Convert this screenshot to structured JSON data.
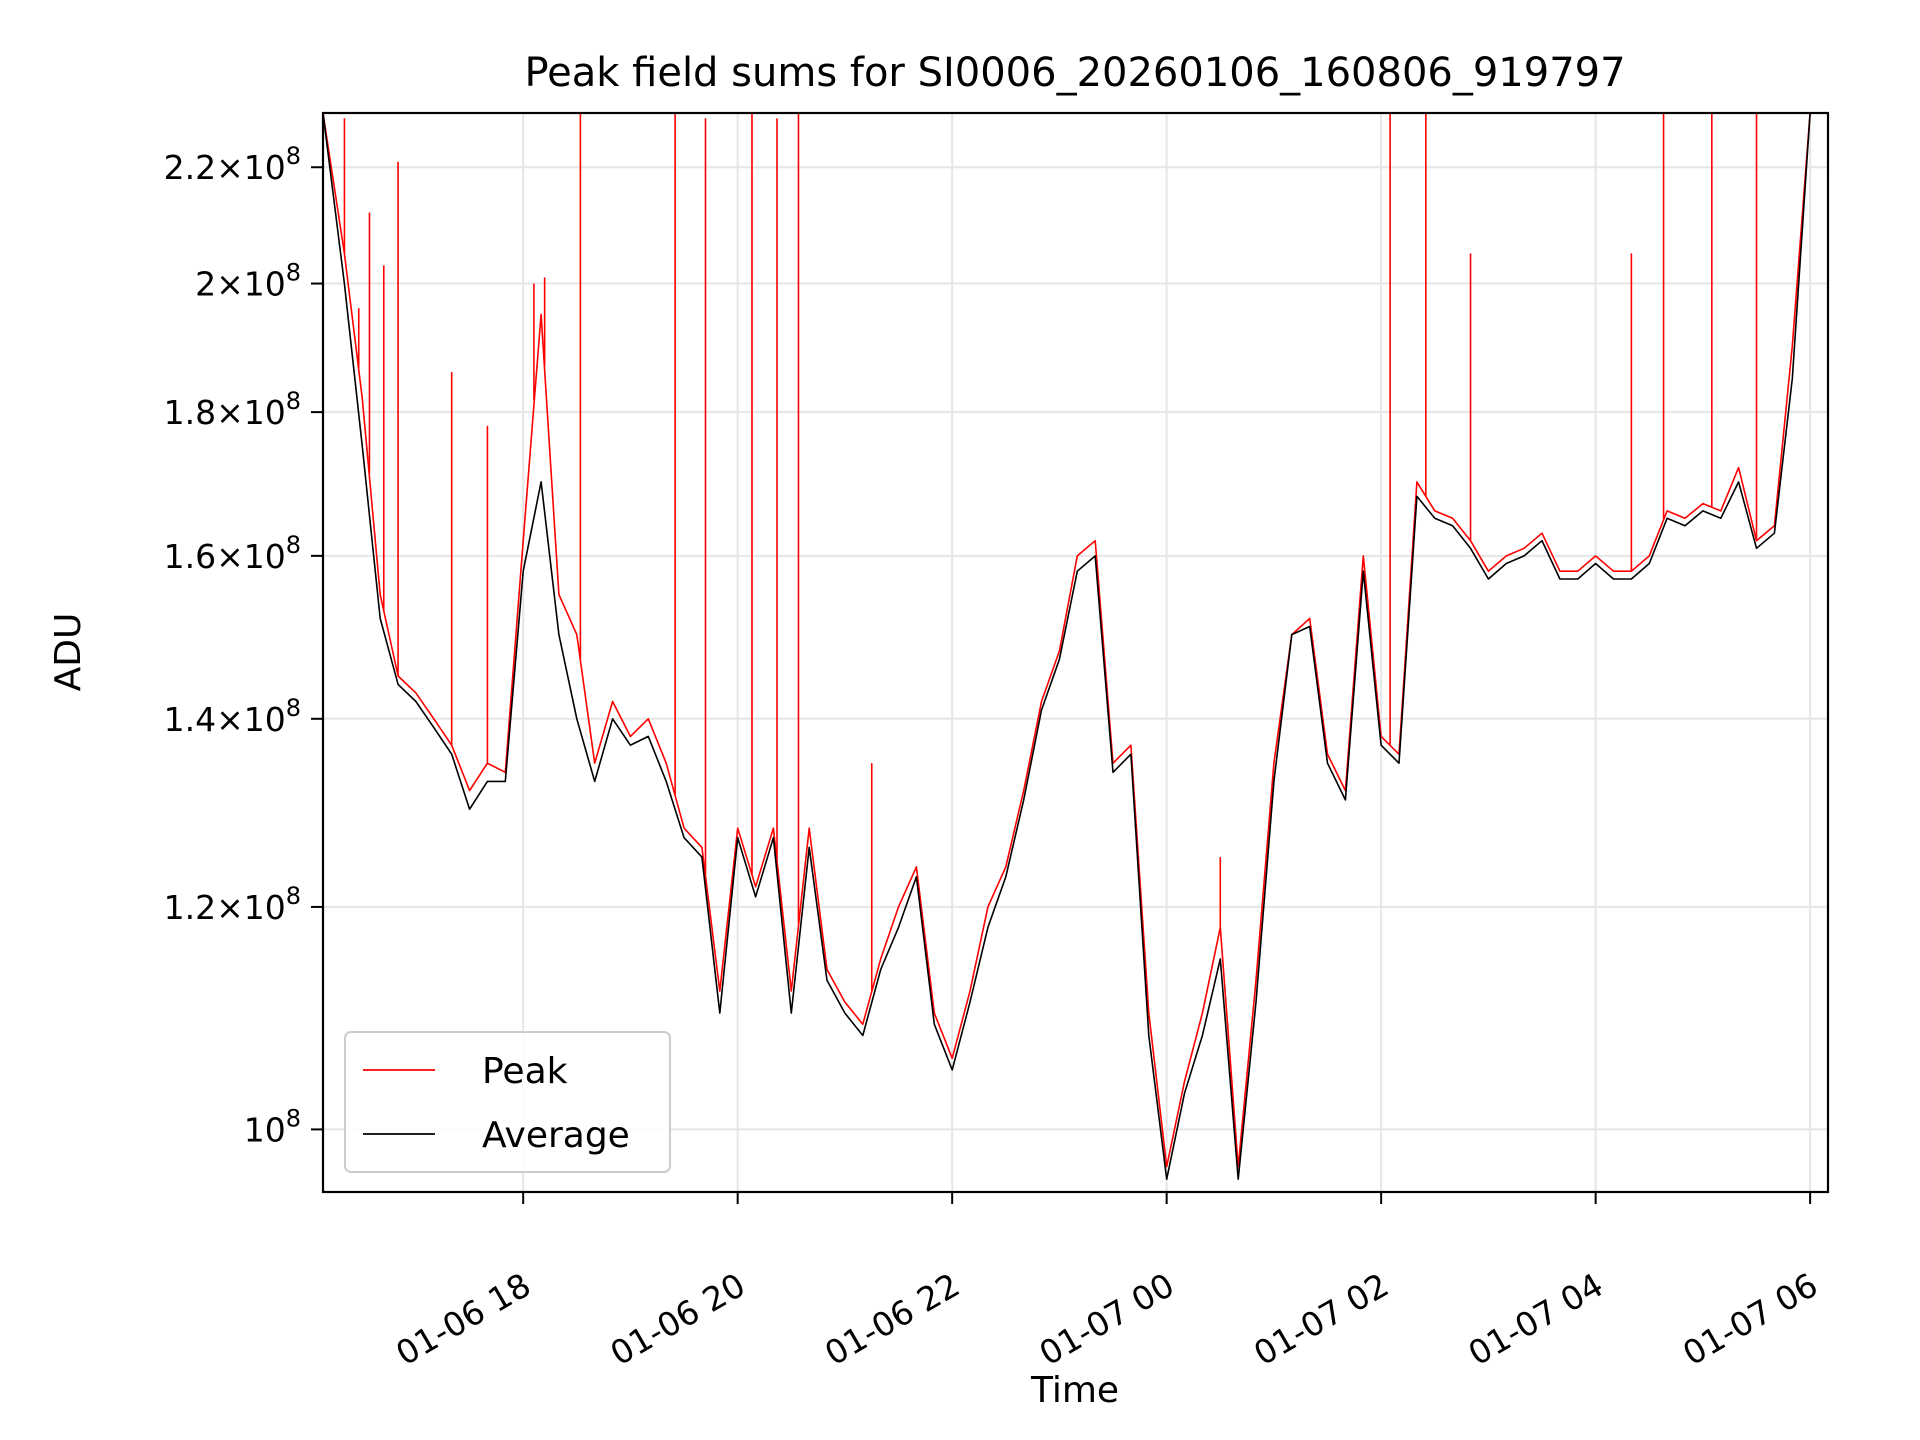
{
  "chart_data": {
    "type": "line",
    "title": "Peak field sums for SI0006_20260106_160806_919797",
    "xlabel": "Time",
    "ylabel": "ADU",
    "y_scale": "log",
    "ylim": [
      95000000,
      230000000
    ],
    "xlim": [
      "2026-01-06 16:08",
      "2026-01-07 06:10"
    ],
    "grid": true,
    "legend_position": "lower-left",
    "x_ticks": [
      {
        "time": "2026-01-06 18:00",
        "label": "01-06 18"
      },
      {
        "time": "2026-01-06 20:00",
        "label": "01-06 20"
      },
      {
        "time": "2026-01-06 22:00",
        "label": "01-06 22"
      },
      {
        "time": "2026-01-07 00:00",
        "label": "01-07 00"
      },
      {
        "time": "2026-01-07 02:00",
        "label": "01-07 02"
      },
      {
        "time": "2026-01-07 04:00",
        "label": "01-07 04"
      },
      {
        "time": "2026-01-07 06:00",
        "label": "01-07 06"
      }
    ],
    "y_ticks": [
      {
        "value": 100000000,
        "mantissa": "",
        "exponent": "8"
      },
      {
        "value": 120000000,
        "mantissa": "1.2",
        "exponent": "8"
      },
      {
        "value": 140000000,
        "mantissa": "1.4",
        "exponent": "8"
      },
      {
        "value": 160000000,
        "mantissa": "1.6",
        "exponent": "8"
      },
      {
        "value": 180000000,
        "mantissa": "1.8",
        "exponent": "8"
      },
      {
        "value": 200000000,
        "mantissa": "2",
        "exponent": "8"
      },
      {
        "value": 220000000,
        "mantissa": "2.2",
        "exponent": "8"
      }
    ],
    "series": [
      {
        "name": "Peak",
        "color": "#ff0000",
        "x": [
          "2026-01-06 16:08",
          "2026-01-06 16:20",
          "2026-01-06 16:30",
          "2026-01-06 16:40",
          "2026-01-06 16:50",
          "2026-01-06 17:00",
          "2026-01-06 17:10",
          "2026-01-06 17:20",
          "2026-01-06 17:30",
          "2026-01-06 17:40",
          "2026-01-06 17:50",
          "2026-01-06 18:00",
          "2026-01-06 18:10",
          "2026-01-06 18:20",
          "2026-01-06 18:30",
          "2026-01-06 18:40",
          "2026-01-06 18:50",
          "2026-01-06 19:00",
          "2026-01-06 19:10",
          "2026-01-06 19:20",
          "2026-01-06 19:30",
          "2026-01-06 19:40",
          "2026-01-06 19:50",
          "2026-01-06 20:00",
          "2026-01-06 20:10",
          "2026-01-06 20:20",
          "2026-01-06 20:30",
          "2026-01-06 20:40",
          "2026-01-06 20:50",
          "2026-01-06 21:00",
          "2026-01-06 21:10",
          "2026-01-06 21:20",
          "2026-01-06 21:30",
          "2026-01-06 21:40",
          "2026-01-06 21:50",
          "2026-01-06 22:00",
          "2026-01-06 22:10",
          "2026-01-06 22:20",
          "2026-01-06 22:30",
          "2026-01-06 22:40",
          "2026-01-06 22:50",
          "2026-01-06 23:00",
          "2026-01-06 23:10",
          "2026-01-06 23:20",
          "2026-01-06 23:30",
          "2026-01-06 23:40",
          "2026-01-06 23:50",
          "2026-01-07 00:00",
          "2026-01-07 00:10",
          "2026-01-07 00:20",
          "2026-01-07 00:30",
          "2026-01-07 00:40",
          "2026-01-07 00:50",
          "2026-01-07 01:00",
          "2026-01-07 01:10",
          "2026-01-07 01:20",
          "2026-01-07 01:30",
          "2026-01-07 01:40",
          "2026-01-07 01:50",
          "2026-01-07 02:00",
          "2026-01-07 02:10",
          "2026-01-07 02:20",
          "2026-01-07 02:30",
          "2026-01-07 02:40",
          "2026-01-07 02:50",
          "2026-01-07 03:00",
          "2026-01-07 03:10",
          "2026-01-07 03:20",
          "2026-01-07 03:30",
          "2026-01-07 03:40",
          "2026-01-07 03:50",
          "2026-01-07 04:00",
          "2026-01-07 04:10",
          "2026-01-07 04:20",
          "2026-01-07 04:30",
          "2026-01-07 04:40",
          "2026-01-07 04:50",
          "2026-01-07 05:00",
          "2026-01-07 05:10",
          "2026-01-07 05:20",
          "2026-01-07 05:30",
          "2026-01-07 05:40",
          "2026-01-07 05:50",
          "2026-01-07 06:00",
          "2026-01-07 06:10"
        ],
        "y": [
          230000000,
          205000000,
          182000000,
          155000000,
          145000000,
          143000000,
          140000000,
          137000000,
          132000000,
          135000000,
          134000000,
          162000000,
          195000000,
          155000000,
          150000000,
          135000000,
          142000000,
          138000000,
          140000000,
          135000000,
          128000000,
          126000000,
          112000000,
          128000000,
          122000000,
          128000000,
          112000000,
          128000000,
          114000000,
          111000000,
          109000000,
          115000000,
          120000000,
          124000000,
          110000000,
          106000000,
          112000000,
          120000000,
          124000000,
          132000000,
          142000000,
          148000000,
          160000000,
          162000000,
          135000000,
          137000000,
          110000000,
          97000000,
          104000000,
          110000000,
          118000000,
          97000000,
          113000000,
          135000000,
          150000000,
          152000000,
          136000000,
          132000000,
          160000000,
          138000000,
          136000000,
          170000000,
          166000000,
          165000000,
          162000000,
          158000000,
          160000000,
          161000000,
          163000000,
          158000000,
          158000000,
          160000000,
          158000000,
          158000000,
          160000000,
          166000000,
          165000000,
          167000000,
          166000000,
          172000000,
          162000000,
          164000000,
          190000000,
          230000000,
          230000000
        ],
        "spikes": [
          {
            "x": "2026-01-06 16:20",
            "y": 229000000
          },
          {
            "x": "2026-01-06 16:28",
            "y": 196000000
          },
          {
            "x": "2026-01-06 16:34",
            "y": 212000000
          },
          {
            "x": "2026-01-06 16:42",
            "y": 203000000
          },
          {
            "x": "2026-01-06 16:50",
            "y": 221000000
          },
          {
            "x": "2026-01-06 17:20",
            "y": 186000000
          },
          {
            "x": "2026-01-06 17:40",
            "y": 178000000
          },
          {
            "x": "2026-01-06 18:06",
            "y": 200000000
          },
          {
            "x": "2026-01-06 18:12",
            "y": 201000000
          },
          {
            "x": "2026-01-06 18:32",
            "y": 230000000
          },
          {
            "x": "2026-01-06 19:25",
            "y": 230000000
          },
          {
            "x": "2026-01-06 19:42",
            "y": 229000000
          },
          {
            "x": "2026-01-06 20:08",
            "y": 230000000
          },
          {
            "x": "2026-01-06 20:22",
            "y": 229000000
          },
          {
            "x": "2026-01-06 20:34",
            "y": 230000000
          },
          {
            "x": "2026-01-06 21:15",
            "y": 135000000
          },
          {
            "x": "2026-01-07 00:30",
            "y": 125000000
          },
          {
            "x": "2026-01-07 02:05",
            "y": 230000000
          },
          {
            "x": "2026-01-07 02:25",
            "y": 230000000
          },
          {
            "x": "2026-01-07 02:50",
            "y": 205000000
          },
          {
            "x": "2026-01-07 04:20",
            "y": 205000000
          },
          {
            "x": "2026-01-07 04:38",
            "y": 230000000
          },
          {
            "x": "2026-01-07 05:05",
            "y": 230000000
          },
          {
            "x": "2026-01-07 05:30",
            "y": 230000000
          }
        ]
      },
      {
        "name": "Average",
        "color": "#000000",
        "x": [
          "2026-01-06 16:08",
          "2026-01-06 16:20",
          "2026-01-06 16:30",
          "2026-01-06 16:40",
          "2026-01-06 16:50",
          "2026-01-06 17:00",
          "2026-01-06 17:10",
          "2026-01-06 17:20",
          "2026-01-06 17:30",
          "2026-01-06 17:40",
          "2026-01-06 17:50",
          "2026-01-06 18:00",
          "2026-01-06 18:10",
          "2026-01-06 18:20",
          "2026-01-06 18:30",
          "2026-01-06 18:40",
          "2026-01-06 18:50",
          "2026-01-06 19:00",
          "2026-01-06 19:10",
          "2026-01-06 19:20",
          "2026-01-06 19:30",
          "2026-01-06 19:40",
          "2026-01-06 19:50",
          "2026-01-06 20:00",
          "2026-01-06 20:10",
          "2026-01-06 20:20",
          "2026-01-06 20:30",
          "2026-01-06 20:40",
          "2026-01-06 20:50",
          "2026-01-06 21:00",
          "2026-01-06 21:10",
          "2026-01-06 21:20",
          "2026-01-06 21:30",
          "2026-01-06 21:40",
          "2026-01-06 21:50",
          "2026-01-06 22:00",
          "2026-01-06 22:10",
          "2026-01-06 22:20",
          "2026-01-06 22:30",
          "2026-01-06 22:40",
          "2026-01-06 22:50",
          "2026-01-06 23:00",
          "2026-01-06 23:10",
          "2026-01-06 23:20",
          "2026-01-06 23:30",
          "2026-01-06 23:40",
          "2026-01-06 23:50",
          "2026-01-07 00:00",
          "2026-01-07 00:10",
          "2026-01-07 00:20",
          "2026-01-07 00:30",
          "2026-01-07 00:40",
          "2026-01-07 00:50",
          "2026-01-07 01:00",
          "2026-01-07 01:10",
          "2026-01-07 01:20",
          "2026-01-07 01:30",
          "2026-01-07 01:40",
          "2026-01-07 01:50",
          "2026-01-07 02:00",
          "2026-01-07 02:10",
          "2026-01-07 02:20",
          "2026-01-07 02:30",
          "2026-01-07 02:40",
          "2026-01-07 02:50",
          "2026-01-07 03:00",
          "2026-01-07 03:10",
          "2026-01-07 03:20",
          "2026-01-07 03:30",
          "2026-01-07 03:40",
          "2026-01-07 03:50",
          "2026-01-07 04:00",
          "2026-01-07 04:10",
          "2026-01-07 04:20",
          "2026-01-07 04:30",
          "2026-01-07 04:40",
          "2026-01-07 04:50",
          "2026-01-07 05:00",
          "2026-01-07 05:10",
          "2026-01-07 05:20",
          "2026-01-07 05:30",
          "2026-01-07 05:40",
          "2026-01-07 05:50",
          "2026-01-07 06:00",
          "2026-01-07 06:10"
        ],
        "y": [
          230000000,
          200000000,
          175000000,
          152000000,
          144000000,
          142000000,
          139000000,
          136000000,
          130000000,
          133000000,
          133000000,
          158000000,
          170000000,
          150000000,
          140000000,
          133000000,
          140000000,
          137000000,
          138000000,
          133000000,
          127000000,
          125000000,
          110000000,
          127000000,
          121000000,
          127000000,
          110000000,
          126000000,
          113000000,
          110000000,
          108000000,
          114000000,
          118000000,
          123000000,
          109000000,
          105000000,
          111000000,
          118000000,
          123000000,
          131000000,
          141000000,
          147000000,
          158000000,
          160000000,
          134000000,
          136000000,
          108000000,
          96000000,
          103000000,
          108000000,
          115000000,
          96000000,
          111000000,
          133000000,
          150000000,
          151000000,
          135000000,
          131000000,
          158000000,
          137000000,
          135000000,
          168000000,
          165000000,
          164000000,
          161000000,
          157000000,
          159000000,
          160000000,
          162000000,
          157000000,
          157000000,
          159000000,
          157000000,
          157000000,
          159000000,
          165000000,
          164000000,
          166000000,
          165000000,
          170000000,
          161000000,
          163000000,
          185000000,
          230000000,
          230000000
        ]
      }
    ]
  }
}
